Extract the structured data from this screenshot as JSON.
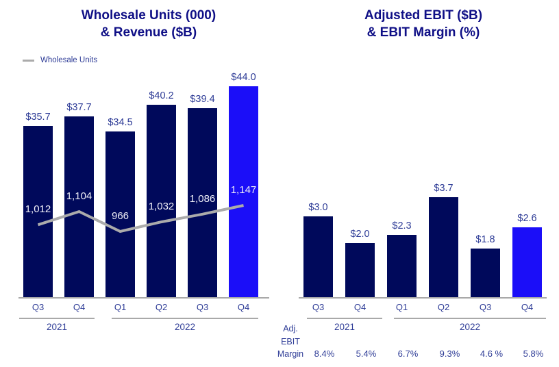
{
  "colors": {
    "background": "#FFFFFF",
    "bar_navy": "#00095B",
    "bar_highlight": "#1B0EF8",
    "line_gray": "#ABABAB",
    "axis_gray": "#A9A9A9",
    "title_navy": "#0F0F86",
    "label_navy": "#2D3B96",
    "bar_text_light": "#EFEFF7"
  },
  "chart_data": [
    {
      "type": "bar",
      "title_lines": [
        "Wholesale Units (000)",
        "& Revenue ($B)"
      ],
      "legend": {
        "series": "Wholesale Units"
      },
      "categories": [
        "Q3",
        "Q4",
        "Q1",
        "Q2",
        "Q3",
        "Q4"
      ],
      "groups": [
        {
          "label": "2021",
          "from": 0,
          "to": 1
        },
        {
          "label": "2022",
          "from": 2,
          "to": 5
        }
      ],
      "series": [
        {
          "name": "Revenue ($B)",
          "type": "bar",
          "values": [
            35.7,
            37.7,
            34.5,
            40.2,
            39.4,
            44.0
          ],
          "data_labels": [
            "$35.7",
            "$37.7",
            "$34.5",
            "$40.2",
            "$39.4",
            "$44.0"
          ],
          "highlight_index": 5
        },
        {
          "name": "Wholesale Units",
          "type": "line",
          "values": [
            1012,
            1104,
            966,
            1032,
            1086,
            1147
          ],
          "data_labels": [
            "1,012",
            "1,104",
            "966",
            "1,032",
            "1,086",
            "1,147"
          ]
        }
      ]
    },
    {
      "type": "bar",
      "title_lines": [
        "Adjusted EBIT ($B)",
        "& EBIT Margin (%)"
      ],
      "categories": [
        "Q3",
        "Q4",
        "Q1",
        "Q2",
        "Q3",
        "Q4"
      ],
      "groups": [
        {
          "label": "2021",
          "from": 0,
          "to": 1
        },
        {
          "label": "2022",
          "from": 2,
          "to": 5
        }
      ],
      "series": [
        {
          "name": "Adjusted EBIT ($B)",
          "type": "bar",
          "values": [
            3.0,
            2.0,
            2.3,
            3.7,
            1.8,
            2.6
          ],
          "data_labels": [
            "$3.0",
            "$2.0",
            "$2.3",
            "$3.7",
            "$1.8",
            "$2.6"
          ],
          "highlight_index": 5
        }
      ],
      "margin_row": {
        "header_lines": [
          "Adj.",
          "EBIT",
          "Margin"
        ],
        "values": [
          "8.4%",
          "5.4%",
          "6.7%",
          "9.3%",
          "4.6 %",
          "5.8%"
        ]
      }
    }
  ]
}
